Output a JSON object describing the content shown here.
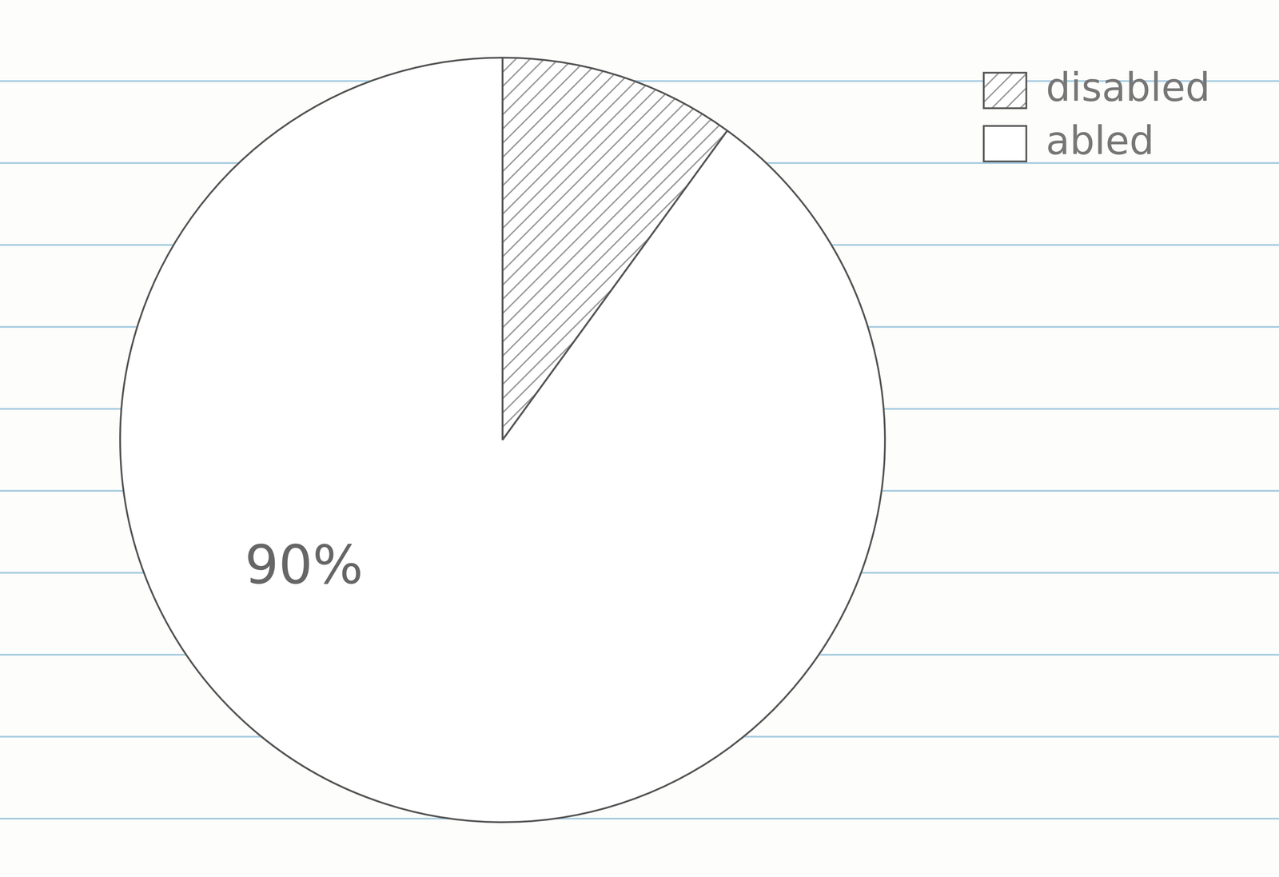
{
  "chart_data": {
    "type": "pie",
    "categories": [
      "disabled",
      "abled"
    ],
    "values": [
      10,
      90
    ],
    "value_labels": [
      null,
      "90%"
    ],
    "colors": [
      "#9a9a9a",
      "#ffffff"
    ],
    "legend": "top-right",
    "data_labels": true
  }
}
